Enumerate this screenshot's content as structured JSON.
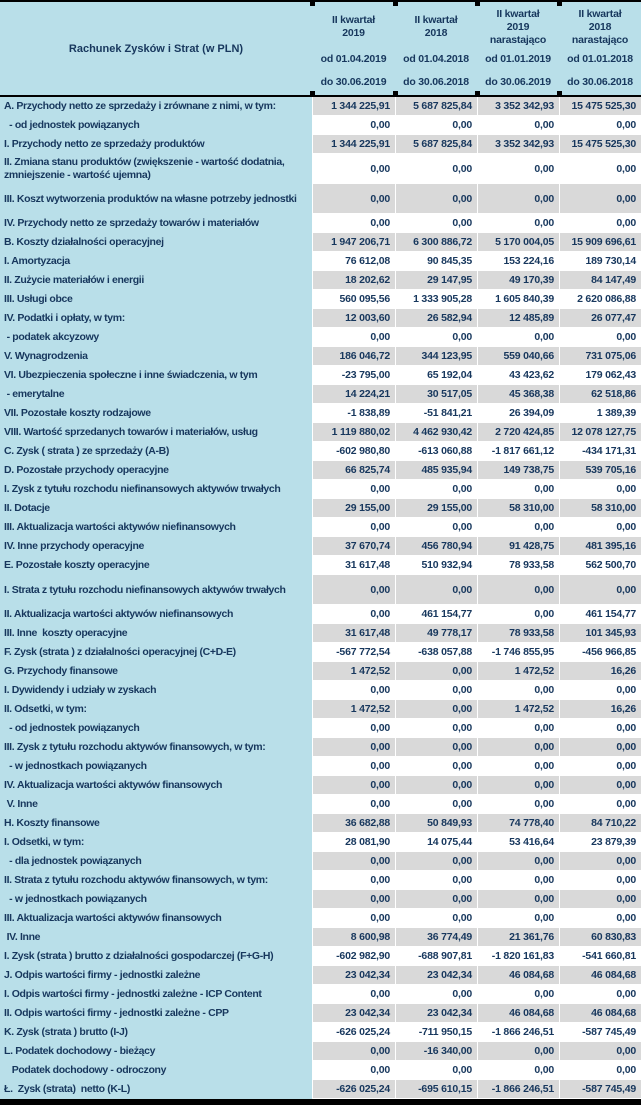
{
  "title": "Rachunek Zysków i Strat (w PLN)",
  "colors": {
    "header_bg": "#B9DFE9",
    "shaded_row_bg": "#D9D9D9",
    "text": "#17375D",
    "border": "#000000"
  },
  "columns": [
    {
      "period": [
        "II kwartał",
        "2019"
      ],
      "from": "od 01.04.2019",
      "to": "do 30.06.2019"
    },
    {
      "period": [
        "II kwartał",
        "2018"
      ],
      "from": "od 01.04.2018",
      "to": "do 30.06.2018"
    },
    {
      "period": [
        "II kwartał",
        "2019",
        "narastająco"
      ],
      "from": "od 01.01.2019",
      "to": "do 30.06.2019"
    },
    {
      "period": [
        "II kwartał",
        "2018",
        "narastająco"
      ],
      "from": "od 01.01.2018",
      "to": "do 30.06.2018"
    }
  ],
  "rows": [
    {
      "label": "A. Przychody netto ze sprzedaży i zrównane z nimi, w tym:",
      "values": [
        "1 344 225,91",
        "5 687 825,84",
        "3 352 342,93",
        "15 475 525,30"
      ]
    },
    {
      "label": "  - od jednostek powiązanych",
      "values": [
        "0,00",
        "0,00",
        "0,00",
        "0,00"
      ]
    },
    {
      "label": "I. Przychody netto ze sprzedaży produktów",
      "values": [
        "1 344 225,91",
        "5 687 825,84",
        "3 352 342,93",
        "15 475 525,30"
      ]
    },
    {
      "label": "II. Zmiana stanu produktów (zwiększenie - wartość dodatnia, zmniejszenie - wartość ujemna)",
      "values": [
        "0,00",
        "0,00",
        "0,00",
        "0,00"
      ],
      "tall": true
    },
    {
      "label": "III. Koszt wytworzenia produktów na własne potrzeby jednostki",
      "values": [
        "0,00",
        "0,00",
        "0,00",
        "0,00"
      ],
      "tall": true
    },
    {
      "label": "IV. Przychody netto ze sprzedaży towarów i materiałów",
      "values": [
        "0,00",
        "0,00",
        "0,00",
        "0,00"
      ]
    },
    {
      "label": "B. Koszty działalności operacyjnej",
      "values": [
        "1 947 206,71",
        "6 300 886,72",
        "5 170 004,05",
        "15 909 696,61"
      ]
    },
    {
      "label": "I. Amortyzacja",
      "values": [
        "76 612,08",
        "90 845,35",
        "153 224,16",
        "189 730,14"
      ]
    },
    {
      "label": "II. Zużycie materiałów i energii",
      "values": [
        "18 202,62",
        "29 147,95",
        "49 170,39",
        "84 147,49"
      ]
    },
    {
      "label": "III. Usługi obce",
      "values": [
        "560 095,56",
        "1 333 905,28",
        "1 605 840,39",
        "2 620 086,88"
      ]
    },
    {
      "label": "IV. Podatki i opłaty, w tym:",
      "values": [
        "12 003,60",
        "26 582,94",
        "12 485,89",
        "26 077,47"
      ]
    },
    {
      "label": " - podatek akcyzowy",
      "values": [
        "0,00",
        "0,00",
        "0,00",
        "0,00"
      ]
    },
    {
      "label": "V. Wynagrodzenia",
      "values": [
        "186 046,72",
        "344 123,95",
        "559 040,66",
        "731 075,06"
      ]
    },
    {
      "label": "VI. Ubezpieczenia społeczne i inne świadczenia, w tym",
      "values": [
        "-23 795,00",
        "65 192,04",
        "43 423,62",
        "179 062,43"
      ]
    },
    {
      "label": " - emerytalne",
      "values": [
        "14 224,21",
        "30 517,05",
        "45 368,38",
        "62 518,86"
      ]
    },
    {
      "label": "VII. Pozostałe koszty rodzajowe",
      "values": [
        "-1 838,89",
        "-51 841,21",
        "26 394,09",
        "1 389,39"
      ]
    },
    {
      "label": "VIII. Wartość sprzedanych towarów i materiałów, usług",
      "values": [
        "1 119 880,02",
        "4 462 930,42",
        "2 720 424,85",
        "12 078 127,75"
      ]
    },
    {
      "label": "C. Zysk ( strata ) ze sprzedaży (A-B)",
      "values": [
        "-602 980,80",
        "-613 060,88",
        "-1 817 661,12",
        "-434 171,31"
      ]
    },
    {
      "label": "D. Pozostałe przychody operacyjne",
      "values": [
        "66 825,74",
        "485 935,94",
        "149 738,75",
        "539 705,16"
      ]
    },
    {
      "label": "I. Zysk z tytułu rozchodu niefinansowych aktywów trwałych",
      "values": [
        "0,00",
        "0,00",
        "0,00",
        "0,00"
      ]
    },
    {
      "label": "II. Dotacje",
      "values": [
        "29 155,00",
        "29 155,00",
        "58 310,00",
        "58 310,00"
      ]
    },
    {
      "label": "III. Aktualizacja wartości aktywów niefinansowych",
      "values": [
        "0,00",
        "0,00",
        "0,00",
        "0,00"
      ]
    },
    {
      "label": "IV. Inne przychody operacyjne",
      "values": [
        "37 670,74",
        "456 780,94",
        "91 428,75",
        "481 395,16"
      ]
    },
    {
      "label": "E. Pozostałe koszty operacyjne",
      "values": [
        "31 617,48",
        "510 932,94",
        "78 933,58",
        "562 500,70"
      ]
    },
    {
      "label": "I. Strata z tytułu rozchodu niefinansowych aktywów trwałych",
      "values": [
        "0,00",
        "0,00",
        "0,00",
        "0,00"
      ],
      "tall": true
    },
    {
      "label": "II. Aktualizacja wartości aktywów niefinansowych",
      "values": [
        "0,00",
        "461 154,77",
        "0,00",
        "461 154,77"
      ]
    },
    {
      "label": "III. Inne  koszty operacyjne",
      "values": [
        "31 617,48",
        "49 778,17",
        "78 933,58",
        "101 345,93"
      ]
    },
    {
      "label": "F. Zysk (strata ) z działalności operacyjnej (C+D-E)",
      "values": [
        "-567 772,54",
        "-638 057,88",
        "-1 746 855,95",
        "-456 966,85"
      ]
    },
    {
      "label": "G. Przychody finansowe",
      "values": [
        "1 472,52",
        "0,00",
        "1 472,52",
        "16,26"
      ]
    },
    {
      "label": "I. Dywidendy i udziały w zyskach",
      "values": [
        "0,00",
        "0,00",
        "0,00",
        "0,00"
      ]
    },
    {
      "label": "II. Odsetki, w tym:",
      "values": [
        "1 472,52",
        "0,00",
        "1 472,52",
        "16,26"
      ]
    },
    {
      "label": "  - od jednostek powiązanych",
      "values": [
        "0,00",
        "0,00",
        "0,00",
        "0,00"
      ]
    },
    {
      "label": "III. Zysk z tytułu rozchodu aktywów finansowych, w tym:",
      "values": [
        "0,00",
        "0,00",
        "0,00",
        "0,00"
      ]
    },
    {
      "label": "  - w jednostkach powiązanych",
      "values": [
        "0,00",
        "0,00",
        "0,00",
        "0,00"
      ]
    },
    {
      "label": "IV. Aktualizacja wartości aktywów finansowych",
      "values": [
        "0,00",
        "0,00",
        "0,00",
        "0,00"
      ]
    },
    {
      "label": " V. Inne",
      "values": [
        "0,00",
        "0,00",
        "0,00",
        "0,00"
      ]
    },
    {
      "label": "H. Koszty finansowe",
      "values": [
        "36 682,88",
        "50 849,93",
        "74 778,40",
        "84 710,22"
      ]
    },
    {
      "label": "I. Odsetki, w tym:",
      "values": [
        "28 081,90",
        "14 075,44",
        "53 416,64",
        "23 879,39"
      ]
    },
    {
      "label": "  - dla jednostek powiązanych",
      "values": [
        "0,00",
        "0,00",
        "0,00",
        "0,00"
      ]
    },
    {
      "label": "II. Strata z tytułu rozchodu aktywów finansowych, w tym:",
      "values": [
        "0,00",
        "0,00",
        "0,00",
        "0,00"
      ]
    },
    {
      "label": "  - w jednostkach powiązanych",
      "values": [
        "0,00",
        "0,00",
        "0,00",
        "0,00"
      ]
    },
    {
      "label": "III. Aktualizacja wartości aktywów finansowych",
      "values": [
        "0,00",
        "0,00",
        "0,00",
        "0,00"
      ]
    },
    {
      "label": " IV. Inne",
      "values": [
        "8 600,98",
        "36 774,49",
        "21 361,76",
        "60 830,83"
      ]
    },
    {
      "label": "I. Zysk (strata ) brutto z działalności gospodarczej (F+G-H)",
      "values": [
        "-602 982,90",
        "-688 907,81",
        "-1 820 161,83",
        "-541 660,81"
      ]
    },
    {
      "label": "J. Odpis wartości firmy - jednostki zależne",
      "values": [
        "23 042,34",
        "23 042,34",
        "46 084,68",
        "46 084,68"
      ]
    },
    {
      "label": "I. Odpis wartości firmy - jednostki zależne - ICP Content",
      "values": [
        "0,00",
        "0,00",
        "0,00",
        "0,00"
      ]
    },
    {
      "label": "II. Odpis wartości firmy - jednostki zależne - CPP",
      "values": [
        "23 042,34",
        "23 042,34",
        "46 084,68",
        "46 084,68"
      ]
    },
    {
      "label": "K. Zysk (strata ) brutto (I-J)",
      "values": [
        "-626 025,24",
        "-711 950,15",
        "-1 866 246,51",
        "-587 745,49"
      ]
    },
    {
      "label": "L. Podatek dochodowy - bieżący",
      "values": [
        "0,00",
        "-16 340,00",
        "0,00",
        "0,00"
      ]
    },
    {
      "label": "   Podatek dochodowy - odroczony",
      "values": [
        "0,00",
        "0,00",
        "0,00",
        "0,00"
      ]
    },
    {
      "label": "Ł.  Zysk (strata)  netto (K-L)",
      "values": [
        "-626 025,24",
        "-695 610,15",
        "-1 866 246,51",
        "-587 745,49"
      ]
    }
  ]
}
